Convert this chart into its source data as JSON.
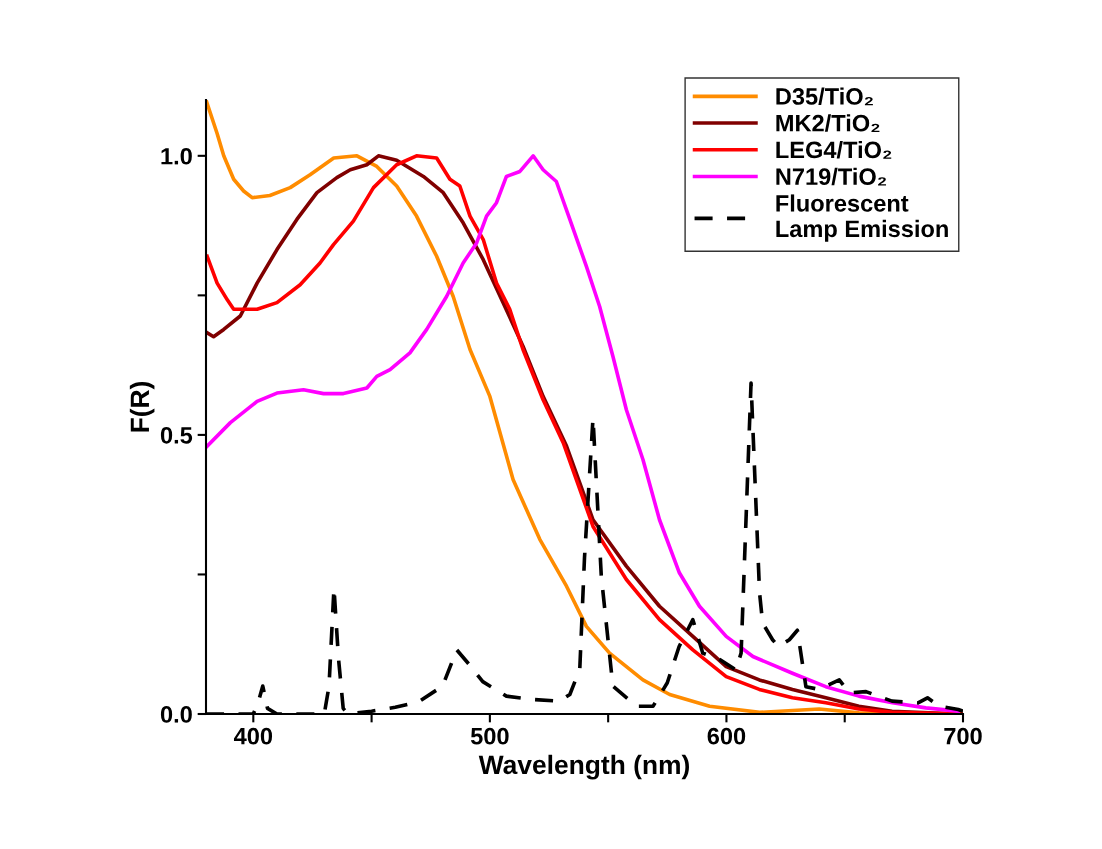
{
  "chart_data": {
    "type": "line",
    "xlabel": "Wavelength (nm)",
    "ylabel": "F(R)",
    "xlim": [
      380,
      700
    ],
    "ylim": [
      0,
      1.1
    ],
    "xticks": [
      400,
      {
        "value": 450,
        "label": null
      },
      500,
      {
        "value": 550,
        "label": null
      },
      600,
      {
        "value": 650,
        "label": null
      },
      700
    ],
    "yticks": [
      {
        "value": 0,
        "label": "0.0"
      },
      {
        "value": 0.25,
        "label": null
      },
      0.5,
      {
        "value": 0.75,
        "label": null
      },
      {
        "value": 1.0,
        "label": "1.0"
      }
    ],
    "grid": false,
    "legend": "top right",
    "line_style": "solid",
    "series": [
      {
        "name": "D35/TiO₂",
        "color": "#ff8c00",
        "x": [
          380,
          384.7,
          387.5,
          391.7,
          395.9,
          399.5,
          407,
          415.6,
          424,
          434,
          443.8,
          452.2,
          460.6,
          469,
          477.5,
          484.5,
          491.6,
          500,
          509.8,
          521.1,
          532.4,
          540.8,
          550.6,
          564.7,
          576,
          592.9,
          614,
          639.2,
          656,
          670,
          700
        ],
        "values": [
          1.1,
          1.04,
          1.0,
          0.958,
          0.937,
          0.925,
          0.929,
          0.943,
          0.966,
          0.996,
          1.0,
          0.981,
          0.946,
          0.892,
          0.82,
          0.748,
          0.653,
          0.569,
          0.42,
          0.313,
          0.229,
          0.157,
          0.109,
          0.061,
          0.035,
          0.014,
          0.003,
          0.009,
          0.002,
          0.0,
          0.0
        ]
      },
      {
        "name": "MK2/TiO₂",
        "color": "#800000",
        "x": [
          380.5,
          383.2,
          387.5,
          394.5,
          401.6,
          410,
          418.4,
          426.9,
          435.3,
          441,
          448,
          452.9,
          460.6,
          471.9,
          480.3,
          488.7,
          497.2,
          505.6,
          514,
          522.5,
          532.4,
          543.6,
          557.7,
          571.7,
          585.8,
          599.9,
          613.9,
          627.9,
          642,
          656,
          670,
          698
        ],
        "values": [
          0.683,
          0.676,
          0.689,
          0.713,
          0.772,
          0.832,
          0.886,
          0.934,
          0.961,
          0.975,
          0.984,
          1.0,
          0.992,
          0.963,
          0.934,
          0.88,
          0.814,
          0.737,
          0.659,
          0.569,
          0.48,
          0.348,
          0.265,
          0.193,
          0.139,
          0.085,
          0.061,
          0.044,
          0.029,
          0.014,
          0.005,
          0.0
        ]
      },
      {
        "name": "LEG4/TiO₂",
        "color": "#ff0000",
        "x": [
          380.5,
          384.7,
          389,
          391.7,
          401.6,
          410,
          419.8,
          428.2,
          433.9,
          442.3,
          450.8,
          460.6,
          469,
          477.5,
          483.1,
          487.3,
          491.6,
          497.2,
          502.8,
          508.4,
          514,
          522.5,
          531,
          543.6,
          557.7,
          571.7,
          585.8,
          599.9,
          613.9,
          627.9,
          642,
          656,
          670,
          700
        ],
        "values": [
          0.82,
          0.772,
          0.742,
          0.725,
          0.725,
          0.737,
          0.769,
          0.808,
          0.841,
          0.883,
          0.943,
          0.984,
          1.0,
          0.996,
          0.958,
          0.946,
          0.892,
          0.85,
          0.772,
          0.725,
          0.653,
          0.563,
          0.486,
          0.336,
          0.241,
          0.169,
          0.115,
          0.067,
          0.044,
          0.029,
          0.02,
          0.009,
          0.003,
          0.0
        ]
      },
      {
        "name": "N719/TiO₂",
        "color": "#ff00ff",
        "x": [
          380.5,
          390.3,
          401.6,
          410,
          421.2,
          429.7,
          438.1,
          448,
          452.2,
          457.8,
          466.2,
          473.3,
          481.7,
          488.7,
          494.4,
          498.6,
          502.8,
          507,
          512.7,
          518.3,
          522.5,
          528.1,
          533.8,
          540.8,
          546.4,
          552,
          557.7,
          564.7,
          571.7,
          580.1,
          588.6,
          599.9,
          611.2,
          627.9,
          642,
          656,
          670.2,
          684.3,
          698
        ],
        "values": [
          0.48,
          0.522,
          0.56,
          0.575,
          0.581,
          0.574,
          0.574,
          0.584,
          0.605,
          0.617,
          0.647,
          0.689,
          0.748,
          0.808,
          0.844,
          0.892,
          0.916,
          0.963,
          0.972,
          1.0,
          0.975,
          0.954,
          0.886,
          0.802,
          0.73,
          0.641,
          0.545,
          0.456,
          0.348,
          0.253,
          0.193,
          0.139,
          0.103,
          0.073,
          0.049,
          0.032,
          0.02,
          0.011,
          0.005
        ]
      },
      {
        "name": "Fluorescent\nLamp Emission",
        "color": "#000000",
        "line_style": "dashed",
        "x": [
          380,
          400,
          402,
          404,
          406,
          410,
          430,
          432,
          434.1,
          436,
          438,
          440,
          450,
          460,
          470,
          480,
          486,
          491,
          497,
          507,
          518,
          529.5,
          533.8,
          538,
          540,
          543.6,
          547.1,
          552,
          562,
          569,
          575,
          580,
          585.8,
          590,
          597,
          604,
          606.2,
          610.4,
          614,
          615.3,
          619.5,
          622,
          626.6,
          630,
          633.6,
          639.2,
          647.7,
          652,
          659,
          670,
          681,
          685,
          690,
          698,
          700
        ],
        "values": [
          0.0,
          0.0,
          0.02,
          0.05,
          0.01,
          0.0,
          0.0,
          0.05,
          0.226,
          0.1,
          0.01,
          0.0,
          0.005,
          0.012,
          0.022,
          0.05,
          0.115,
          0.09,
          0.058,
          0.032,
          0.026,
          0.023,
          0.035,
          0.08,
          0.28,
          0.53,
          0.247,
          0.05,
          0.014,
          0.014,
          0.056,
          0.121,
          0.169,
          0.109,
          0.098,
          0.079,
          0.109,
          0.593,
          0.217,
          0.163,
          0.133,
          0.121,
          0.133,
          0.15,
          0.049,
          0.044,
          0.061,
          0.038,
          0.04,
          0.023,
          0.02,
          0.029,
          0.014,
          0.008,
          0.005
        ]
      }
    ]
  }
}
